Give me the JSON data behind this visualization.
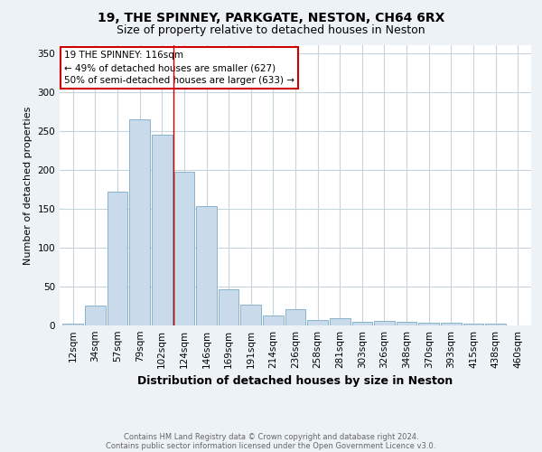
{
  "title1": "19, THE SPINNEY, PARKGATE, NESTON, CH64 6RX",
  "title2": "Size of property relative to detached houses in Neston",
  "xlabel": "Distribution of detached houses by size in Neston",
  "ylabel": "Number of detached properties",
  "categories": [
    "12sqm",
    "34sqm",
    "57sqm",
    "79sqm",
    "102sqm",
    "124sqm",
    "146sqm",
    "169sqm",
    "191sqm",
    "214sqm",
    "236sqm",
    "258sqm",
    "281sqm",
    "303sqm",
    "326sqm",
    "348sqm",
    "370sqm",
    "393sqm",
    "415sqm",
    "438sqm",
    "460sqm"
  ],
  "bar_values": [
    2,
    25,
    172,
    265,
    245,
    198,
    153,
    47,
    27,
    13,
    21,
    7,
    9,
    5,
    6,
    5,
    3,
    3,
    2,
    2,
    0
  ],
  "bar_color": "#c9daea",
  "bar_edge_color": "#8ab4cc",
  "vline_position": 4.52,
  "vline_color": "#cc0000",
  "ylim": [
    0,
    360
  ],
  "yticks": [
    0,
    50,
    100,
    150,
    200,
    250,
    300,
    350
  ],
  "annotation_text": "19 THE SPINNEY: 116sqm\n← 49% of detached houses are smaller (627)\n50% of semi-detached houses are larger (633) →",
  "annotation_box_facecolor": "#ffffff",
  "annotation_box_edgecolor": "#cc0000",
  "footer1": "Contains HM Land Registry data © Crown copyright and database right 2024.",
  "footer2": "Contains public sector information licensed under the Open Government Licence v3.0.",
  "bg_color": "#edf2f7",
  "plot_bg_color": "#ffffff",
  "grid_color": "#c8d4dc",
  "title1_fontsize": 10,
  "title2_fontsize": 9,
  "xlabel_fontsize": 9,
  "ylabel_fontsize": 8,
  "tick_fontsize": 7.5,
  "annotation_fontsize": 7.5,
  "footer_fontsize": 6,
  "footer_color": "#666666"
}
